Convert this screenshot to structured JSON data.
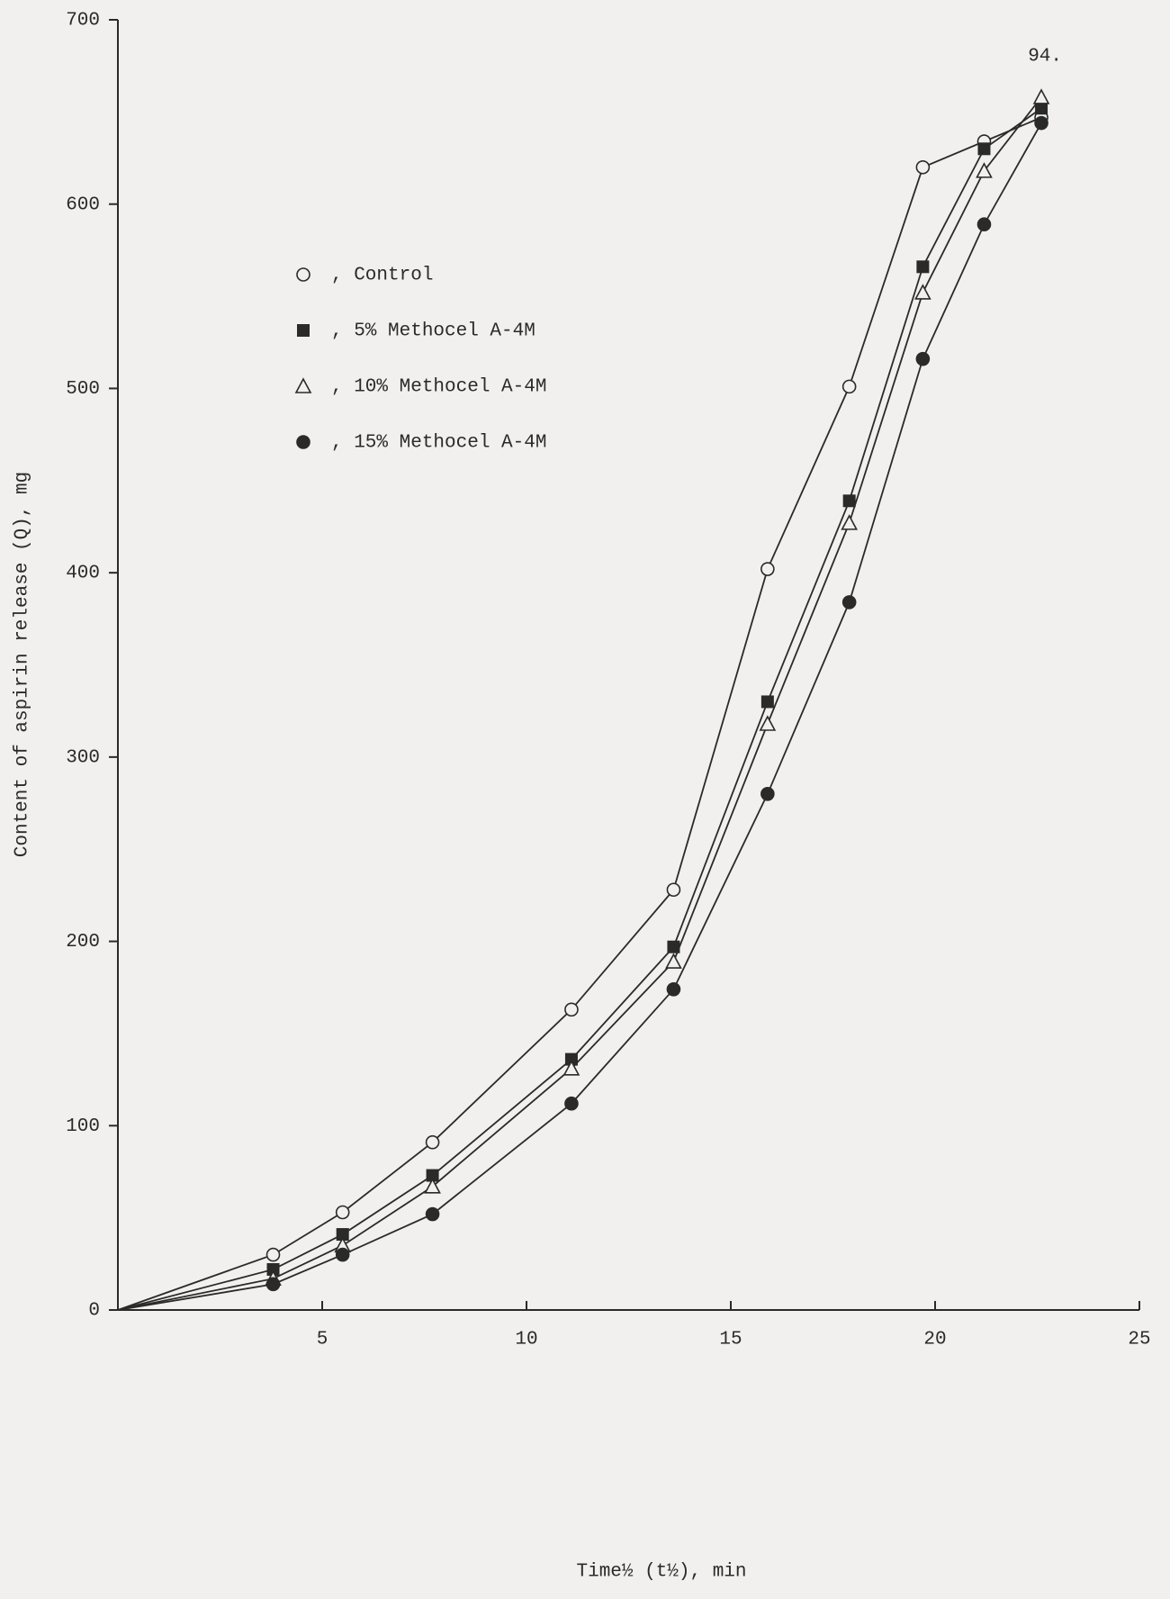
{
  "chart_data": {
    "type": "line",
    "page_number": "94.",
    "xlabel": "Time½ (t½), min",
    "ylabel": "Content of aspirin release (Q), mg",
    "x": [
      0,
      3.8,
      5.5,
      7.7,
      11.1,
      13.6,
      15.9,
      17.9,
      19.7,
      21.2,
      22.6
    ],
    "series": [
      {
        "name": "Control",
        "marker": "circle-open",
        "color": "#2a2a2a",
        "values": [
          0,
          30,
          53,
          91,
          163,
          228,
          402,
          501,
          620,
          634,
          647
        ]
      },
      {
        "name": "5% Methocel A-4M",
        "marker": "square-filled",
        "color": "#2a2a2a",
        "values": [
          0,
          22,
          41,
          73,
          136,
          197,
          330,
          439,
          566,
          630,
          652
        ]
      },
      {
        "name": "10% Methocel A-4M",
        "marker": "triangle-open",
        "color": "#2a2a2a",
        "values": [
          0,
          17,
          35,
          67,
          131,
          189,
          318,
          427,
          552,
          618,
          658
        ]
      },
      {
        "name": "15% Methocel A-4M",
        "marker": "circle-filled",
        "color": "#2a2a2a",
        "values": [
          0,
          14,
          30,
          52,
          112,
          174,
          280,
          384,
          516,
          589,
          644
        ]
      }
    ],
    "xlim": [
      0,
      25
    ],
    "xticks": [
      5,
      10,
      15,
      20,
      25
    ],
    "ylim": [
      0,
      700
    ],
    "yticks": [
      0,
      100,
      200,
      300,
      400,
      500,
      600,
      700
    ],
    "grid": false
  }
}
